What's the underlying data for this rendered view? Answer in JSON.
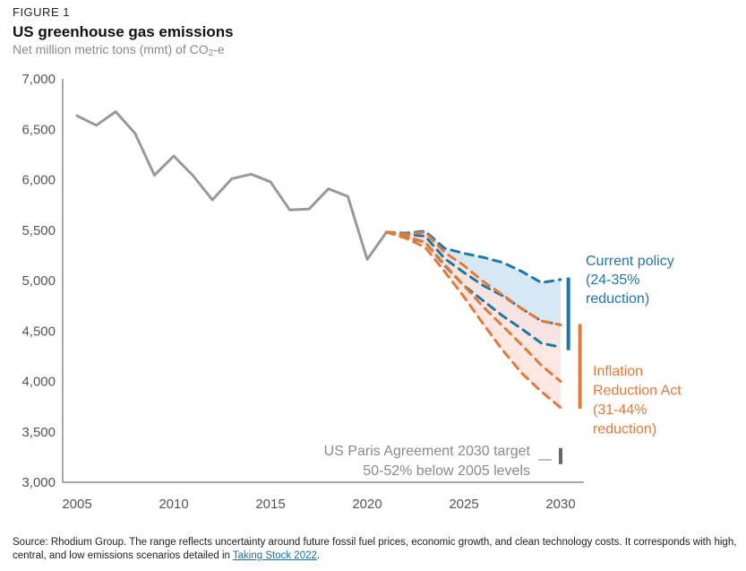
{
  "figure_label": "FIGURE 1",
  "title": "US greenhouse gas emissions",
  "subtitle_prefix": "Net million metric tons (mmt) of CO",
  "subtitle_sub": "2",
  "subtitle_suffix": "-e",
  "footnote": {
    "text": "Source: Rhodium Group. The range reflects uncertainty around future fossil fuel prices, economic growth, and clean technology costs. It corresponds with high, central, and low emissions scenarios detailed in ",
    "link_text": "Taking Stock 2022",
    "end": "."
  },
  "colors": {
    "historical": "#999999",
    "current_policy": "#1f77a8",
    "ira": "#e07b39",
    "current_policy_fill": "#cfe4f2",
    "ira_fill": "#fbe3de",
    "target": "#666666"
  },
  "chart_data": {
    "type": "line",
    "xlim": [
      2005,
      2031
    ],
    "ylim": [
      3000,
      7000
    ],
    "x_ticks": [
      2005,
      2010,
      2015,
      2020,
      2025,
      2030
    ],
    "y_ticks": [
      3000,
      3500,
      4000,
      4500,
      5000,
      5500,
      6000,
      6500,
      7000
    ],
    "x_tick_labels": [
      "2005",
      "2010",
      "2015",
      "2020",
      "2025",
      "2030"
    ],
    "y_tick_labels": [
      "3,000",
      "3,500",
      "4,000",
      "4,500",
      "5,000",
      "5,500",
      "6,000",
      "6,500",
      "7,000"
    ],
    "grid": false,
    "series": [
      {
        "key": "historical",
        "style": "solid",
        "x": [
          2005,
          2006,
          2007,
          2008,
          2009,
          2010,
          2011,
          2012,
          2013,
          2014,
          2015,
          2016,
          2017,
          2018,
          2019,
          2020,
          2021
        ],
        "y": [
          6635,
          6540,
          6675,
          6460,
          6045,
          6235,
          6040,
          5800,
          6010,
          6055,
          5980,
          5700,
          5710,
          5910,
          5835,
          5210,
          5480
        ]
      },
      {
        "key": "current_policy_high",
        "style": "dashed",
        "x": [
          2021,
          2022,
          2023,
          2024,
          2025,
          2026,
          2027,
          2028,
          2029,
          2030
        ],
        "y": [
          5480,
          5470,
          5490,
          5320,
          5270,
          5230,
          5180,
          5090,
          4980,
          5010
        ]
      },
      {
        "key": "current_policy_central",
        "style": "dashed",
        "x": [
          2021,
          2022,
          2023,
          2024,
          2025,
          2026,
          2027,
          2028,
          2029,
          2030
        ],
        "y": [
          5480,
          5460,
          5440,
          5220,
          5080,
          4950,
          4850,
          4720,
          4600,
          4560
        ]
      },
      {
        "key": "current_policy_low",
        "style": "dashed",
        "x": [
          2021,
          2022,
          2023,
          2024,
          2025,
          2026,
          2027,
          2028,
          2029,
          2030
        ],
        "y": [
          5480,
          5430,
          5380,
          5150,
          4950,
          4800,
          4650,
          4520,
          4380,
          4340
        ]
      },
      {
        "key": "ira_high",
        "style": "dashed",
        "x": [
          2021,
          2022,
          2023,
          2024,
          2025,
          2026,
          2027,
          2028,
          2029,
          2030
        ],
        "y": [
          5480,
          5460,
          5480,
          5280,
          5150,
          4990,
          4860,
          4720,
          4600,
          4560
        ]
      },
      {
        "key": "ira_central",
        "style": "dashed",
        "x": [
          2021,
          2022,
          2023,
          2024,
          2025,
          2026,
          2027,
          2028,
          2029,
          2030
        ],
        "y": [
          5480,
          5440,
          5380,
          5160,
          4950,
          4740,
          4550,
          4360,
          4160,
          4000
        ]
      },
      {
        "key": "ira_low",
        "style": "dashed",
        "x": [
          2021,
          2022,
          2023,
          2024,
          2025,
          2026,
          2027,
          2028,
          2029,
          2030
        ],
        "y": [
          5480,
          5420,
          5330,
          5090,
          4840,
          4570,
          4310,
          4080,
          3900,
          3740
        ]
      }
    ],
    "bands": [
      {
        "key": "current_policy",
        "upper": "current_policy_high",
        "lower": "current_policy_low"
      },
      {
        "key": "ira",
        "upper": "ira_high",
        "lower": "ira_low"
      }
    ],
    "range_bars": [
      {
        "key": "current_policy",
        "x": 2030.4,
        "y": [
          4310,
          5030
        ]
      },
      {
        "key": "ira",
        "x": 2031.0,
        "y": [
          3730,
          4570
        ]
      },
      {
        "key": "target",
        "x": 2030.0,
        "y": [
          3180,
          3340
        ]
      }
    ],
    "annotations": {
      "current_policy": [
        "Current policy",
        "(24-35%",
        "reduction)"
      ],
      "ira": [
        "Inflation",
        "Reduction Act",
        "(31-44%",
        "reduction)"
      ],
      "target": [
        "US Paris Agreement 2030 target",
        "50-52% below 2005 levels"
      ]
    }
  }
}
